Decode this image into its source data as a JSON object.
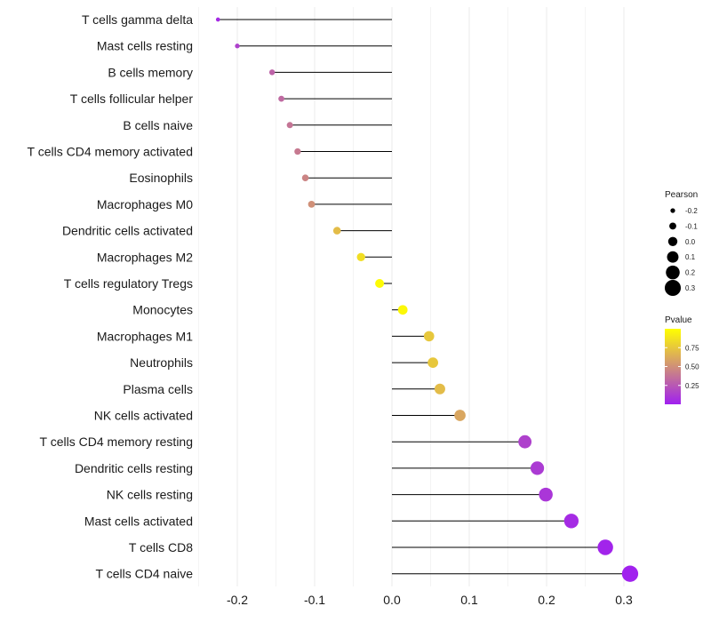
{
  "chart_data": {
    "type": "lollipop",
    "categories": [
      "T cells gamma delta",
      "Mast cells resting",
      "B cells memory",
      "T cells follicular helper",
      "B cells naive",
      "T cells CD4 memory activated",
      "Eosinophils",
      "Macrophages M0",
      "Dendritic cells activated",
      "Macrophages M2",
      "T cells regulatory  Tregs ",
      "Monocytes",
      "Macrophages M1",
      "Neutrophils",
      "Plasma cells",
      "NK cells activated",
      "T cells CD4 memory resting",
      "Dendritic cells resting",
      "NK cells resting",
      "Mast cells activated",
      "T cells CD8",
      "T cells CD4 naive"
    ],
    "pearson": [
      -0.225,
      -0.2,
      -0.155,
      -0.143,
      -0.132,
      -0.122,
      -0.112,
      -0.104,
      -0.071,
      -0.04,
      -0.016,
      0.014,
      0.048,
      0.053,
      0.062,
      0.088,
      0.172,
      0.188,
      0.199,
      0.232,
      0.276,
      0.308
    ],
    "pvalue": [
      0.05,
      0.15,
      0.3,
      0.33,
      0.38,
      0.4,
      0.45,
      0.5,
      0.7,
      0.85,
      0.98,
      0.97,
      0.75,
      0.75,
      0.7,
      0.6,
      0.15,
      0.12,
      0.1,
      0.05,
      0.02,
      0.01
    ],
    "xlabel": "",
    "ylabel": "",
    "xlim": [
      -0.25,
      0.32
    ],
    "xticks": [
      -0.2,
      -0.1,
      0.0,
      0.1,
      0.2,
      0.3
    ],
    "xtick_labels": [
      "-0.2",
      "-0.1",
      "0.0",
      "0.1",
      "0.2",
      "0.3"
    ],
    "grid": true,
    "size_legend": {
      "title": "Pearson",
      "values": [
        -0.2,
        -0.1,
        0.0,
        0.1,
        0.2,
        0.3
      ],
      "labels": [
        "-0.2",
        "-0.1",
        "0.0",
        "0.1",
        "0.2",
        "0.3"
      ]
    },
    "color_legend": {
      "title": "Pvalue",
      "ticks": [
        0.25,
        0.5,
        0.75
      ],
      "labels": [
        "0.25",
        "0.50",
        "0.75"
      ],
      "range": [
        0.0,
        1.0
      ],
      "low_color": "#a020f0",
      "high_color": "#ffff00"
    },
    "legend_position": "right"
  }
}
